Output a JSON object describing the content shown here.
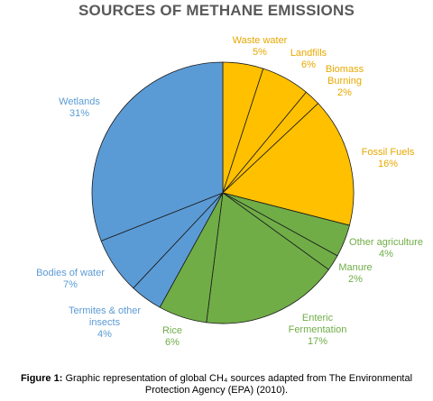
{
  "chart_data": {
    "type": "pie",
    "title": "SOURCES OF METHANE EMISSIONS",
    "slices": [
      {
        "label": "Waste water",
        "value": 5,
        "value_label": "5%",
        "color": "#FFC000"
      },
      {
        "label": "Landfills",
        "value": 6,
        "value_label": "6%",
        "color": "#FFC000"
      },
      {
        "label": "Biomass Burning",
        "value": 2,
        "value_label": "2%",
        "color": "#FFC000"
      },
      {
        "label": "Fossil Fuels",
        "value": 16,
        "value_label": "16%",
        "color": "#FFC000"
      },
      {
        "label": "Other agriculture",
        "value": 4,
        "value_label": "4%",
        "color": "#70AD47"
      },
      {
        "label": "Manure",
        "value": 2,
        "value_label": "2%",
        "color": "#70AD47"
      },
      {
        "label": "Enteric Fermentation",
        "value": 17,
        "value_label": "17%",
        "color": "#70AD47"
      },
      {
        "label": "Rice",
        "value": 6,
        "value_label": "6%",
        "color": "#70AD47"
      },
      {
        "label": "Termites & other insects",
        "value": 4,
        "value_label": "4%",
        "color": "#5B9BD5"
      },
      {
        "label": "Bodies of water",
        "value": 7,
        "value_label": "7%",
        "color": "#5B9BD5"
      },
      {
        "label": "Wetlands",
        "value": 31,
        "value_label": "31%",
        "color": "#5B9BD5"
      }
    ],
    "label_colors": {
      "yellow": "#E8A800",
      "green": "#70AD47",
      "blue": "#5B9BD5"
    }
  },
  "caption": {
    "prefix": "Figure 1:",
    "text": " Graphic representation of global CH₄ sources adapted from The Environmental Protection Agency (EPA) (2010)."
  }
}
